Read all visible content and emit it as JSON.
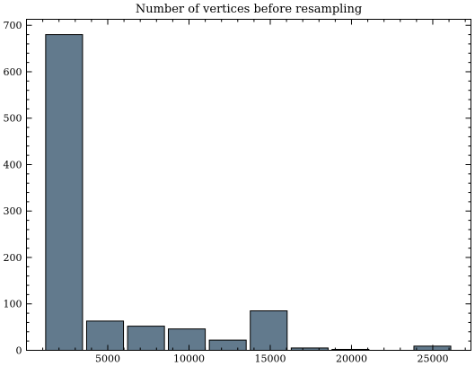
{
  "chart_data": {
    "type": "bar",
    "title": "Number of vertices before resampling",
    "xlabel": "",
    "ylabel": "",
    "bins": [
      {
        "x0": 1180,
        "x1": 3450,
        "value": 680
      },
      {
        "x0": 3700,
        "x1": 5970,
        "value": 63
      },
      {
        "x0": 6220,
        "x1": 8490,
        "value": 52
      },
      {
        "x0": 8730,
        "x1": 11000,
        "value": 46
      },
      {
        "x0": 11250,
        "x1": 13520,
        "value": 22
      },
      {
        "x0": 13770,
        "x1": 16040,
        "value": 85
      },
      {
        "x0": 16290,
        "x1": 18560,
        "value": 5
      },
      {
        "x0": 18800,
        "x1": 21070,
        "value": 2
      },
      {
        "x0": 21320,
        "x1": 23590,
        "value": 0
      },
      {
        "x0": 23840,
        "x1": 26110,
        "value": 9
      }
    ],
    "xlim": [
      0,
      27350
    ],
    "ylim": [
      0,
      713
    ],
    "xticks": [
      5000,
      10000,
      15000,
      20000,
      25000
    ],
    "yticks": [
      0,
      100,
      200,
      300,
      400,
      500,
      600,
      700
    ],
    "xticklabels": [
      "5000",
      "10000",
      "15000",
      "20000",
      "25000"
    ],
    "yticklabels": [
      "0",
      "100",
      "200",
      "300",
      "400",
      "500",
      "600",
      "700"
    ],
    "xminor_step": 1000,
    "yminor_step": 20,
    "grid": false,
    "legend": "none",
    "colors": {
      "bar": "#627a8d",
      "edge": "#000000"
    }
  }
}
